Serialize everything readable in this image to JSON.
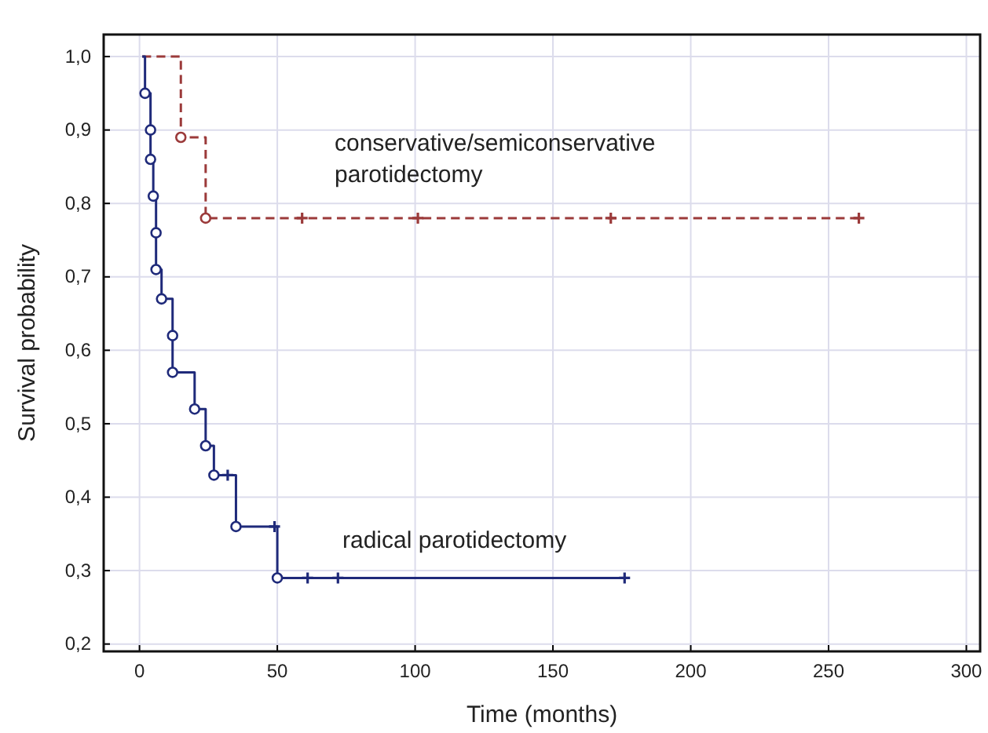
{
  "chart_data": {
    "type": "step",
    "xlabel": "Time (months)",
    "ylabel": "Survival probability",
    "xlim": [
      -13,
      305
    ],
    "ylim": [
      0.19,
      1.03
    ],
    "xticks": [
      0,
      50,
      100,
      150,
      200,
      250,
      300
    ],
    "yticks": [
      {
        "value": 0.2,
        "label": "0,2"
      },
      {
        "value": 0.3,
        "label": "0,3"
      },
      {
        "value": 0.4,
        "label": "0,4"
      },
      {
        "value": 0.5,
        "label": "0,5"
      },
      {
        "value": 0.6,
        "label": "0,6"
      },
      {
        "value": 0.7,
        "label": "0,7"
      },
      {
        "value": 0.8,
        "label": "0,8"
      },
      {
        "value": 0.9,
        "label": "0,9"
      },
      {
        "value": 1.0,
        "label": "1,0"
      }
    ],
    "grid": true,
    "legend": false,
    "series": [
      {
        "name": "conservative/semiconservative parotidectomy",
        "color": "#9b3a3a",
        "line_style": "dashed",
        "marker": "none",
        "x": [
          1,
          15,
          24,
          261
        ],
        "values": [
          1,
          0.89,
          0.78,
          0.78
        ]
      },
      {
        "type": "scatter",
        "color": "#9b3a3a",
        "marker": "circle",
        "x": [
          15,
          24
        ],
        "values": [
          0.89,
          0.78
        ]
      },
      {
        "type": "scatter",
        "color": "#9b3a3a",
        "marker": "cross",
        "x": [
          59,
          101,
          171,
          261
        ],
        "values": [
          0.78,
          0.78,
          0.78,
          0.78
        ]
      },
      {
        "name": "radical parotidectomy",
        "color": "#1f2a7a",
        "line_style": "solid",
        "marker": "none",
        "x": [
          1,
          2,
          4,
          4,
          5,
          6,
          6,
          8,
          12,
          12,
          20,
          24,
          27,
          35,
          50,
          176
        ],
        "values": [
          1,
          0.95,
          0.9,
          0.86,
          0.81,
          0.76,
          0.71,
          0.67,
          0.62,
          0.57,
          0.52,
          0.47,
          0.43,
          0.36,
          0.29,
          0.29
        ]
      },
      {
        "type": "scatter",
        "color": "#1f2a7a",
        "marker": "circle",
        "x": [
          2,
          4,
          4,
          5,
          6,
          6,
          8,
          12,
          12,
          20,
          24,
          27,
          35,
          50
        ],
        "values": [
          0.95,
          0.9,
          0.86,
          0.81,
          0.76,
          0.71,
          0.67,
          0.62,
          0.57,
          0.52,
          0.47,
          0.43,
          0.36,
          0.29
        ]
      },
      {
        "type": "scatter",
        "color": "#1f2a7a",
        "marker": "cross",
        "x": [
          32,
          49,
          61,
          72,
          176
        ],
        "values": [
          0.43,
          0.36,
          0.29,
          0.29,
          0.29
        ]
      }
    ]
  }
}
